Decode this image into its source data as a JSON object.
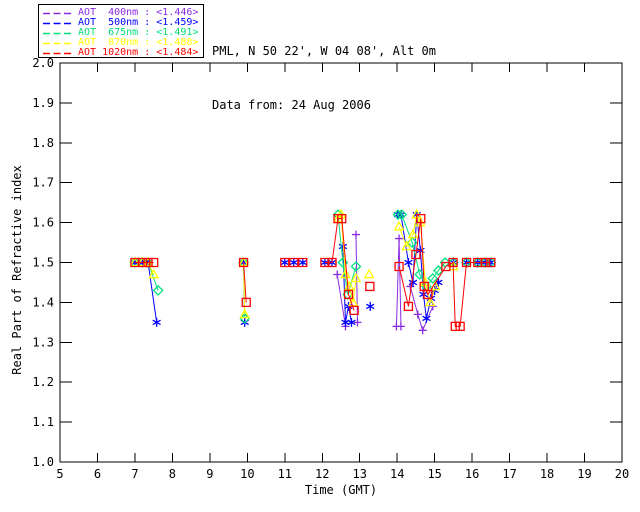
{
  "header": {
    "site": "PML, N 50 22', W 04 08', Alt 0m",
    "date": "Data from: 24 Aug 2006"
  },
  "legend": {
    "items": [
      {
        "label": "AOT  400nm : <1.446>",
        "color": "#8a2be2"
      },
      {
        "label": "AOT  500nm : <1.459>",
        "color": "#0000ff"
      },
      {
        "label": "AOT  675nm : <1.491>",
        "color": "#00e07d"
      },
      {
        "label": "AOT  870nm : <1.488>",
        "color": "#ffff00"
      },
      {
        "label": "AOT 1020nm : <1.484>",
        "color": "#ff0000"
      }
    ]
  },
  "chart_data": {
    "type": "line",
    "title": "",
    "xlabel": "Time (GMT)",
    "ylabel": "Real Part of Refractive index",
    "xlim": [
      5,
      20
    ],
    "ylim": [
      1.0,
      2.0
    ],
    "xticks": [
      5,
      6,
      7,
      8,
      9,
      10,
      11,
      12,
      13,
      14,
      15,
      16,
      17,
      18,
      19,
      20
    ],
    "yticks": [
      1.0,
      1.1,
      1.2,
      1.3,
      1.4,
      1.5,
      1.6,
      1.7,
      1.8,
      1.9,
      2.0
    ],
    "grid": false,
    "legend_position": "top-left",
    "frame_ticks_inward": true,
    "series": [
      {
        "name": "AOT 400nm",
        "wavelength_nm": 400,
        "legend_value": "<1.446>",
        "color": "#8a2be2",
        "marker": "plus",
        "segments": [
          [
            [
              12.4,
              1.47
            ],
            [
              12.62,
              1.34
            ]
          ],
          [
            [
              12.9,
              1.57
            ],
            [
              12.94,
              1.35
            ]
          ],
          [
            [
              13.98,
              1.34
            ],
            [
              14.05,
              1.56
            ],
            [
              14.1,
              1.34
            ]
          ],
          [
            [
              14.35,
              1.44
            ],
            [
              14.55,
              1.37
            ],
            [
              14.68,
              1.33
            ],
            [
              14.95,
              1.39
            ]
          ]
        ]
      },
      {
        "name": "AOT 500nm",
        "wavelength_nm": 500,
        "legend_value": "<1.459>",
        "color": "#0000ff",
        "marker": "asterisk",
        "segments": [
          [
            [
              7.0,
              1.5
            ],
            [
              7.2,
              1.5
            ],
            [
              7.35,
              1.5
            ],
            [
              7.58,
              1.35
            ]
          ],
          [
            [
              9.9,
              1.5
            ],
            [
              9.93,
              1.35
            ]
          ],
          [
            [
              11.0,
              1.5
            ]
          ],
          [
            [
              11.24,
              1.5
            ]
          ],
          [
            [
              11.48,
              1.5
            ]
          ],
          [
            [
              12.07,
              1.5
            ]
          ],
          [
            [
              12.26,
              1.5
            ]
          ],
          [
            [
              12.55,
              1.54
            ],
            [
              12.62,
              1.35
            ],
            [
              12.7,
              1.39
            ],
            [
              12.78,
              1.35
            ]
          ],
          [
            [
              13.28,
              1.39
            ]
          ],
          [
            [
              14.02,
              1.62
            ],
            [
              14.1,
              1.62
            ],
            [
              14.3,
              1.5
            ],
            [
              14.42,
              1.45
            ],
            [
              14.52,
              1.62
            ],
            [
              14.62,
              1.53
            ],
            [
              14.7,
              1.42
            ],
            [
              14.78,
              1.36
            ],
            [
              14.9,
              1.41
            ],
            [
              15.0,
              1.43
            ],
            [
              15.1,
              1.45
            ]
          ],
          [
            [
              15.5,
              1.5
            ]
          ],
          [
            [
              15.85,
              1.5
            ]
          ],
          [
            [
              16.15,
              1.5
            ]
          ],
          [
            [
              16.35,
              1.5
            ]
          ],
          [
            [
              16.5,
              1.5
            ]
          ]
        ]
      },
      {
        "name": "AOT 675nm",
        "wavelength_nm": 675,
        "legend_value": "<1.491>",
        "color": "#00e07d",
        "marker": "diamond",
        "segments": [
          [
            [
              7.0,
              1.5
            ],
            [
              7.2,
              1.5
            ],
            [
              7.35,
              1.5
            ],
            [
              7.62,
              1.43
            ]
          ],
          [
            [
              9.9,
              1.5
            ],
            [
              9.93,
              1.36
            ]
          ],
          [
            [
              12.42,
              1.62
            ],
            [
              12.55,
              1.5
            ],
            [
              12.68,
              1.42
            ],
            [
              12.9,
              1.49
            ]
          ],
          [
            [
              14.02,
              1.62
            ],
            [
              14.12,
              1.62
            ],
            [
              14.4,
              1.55
            ],
            [
              14.6,
              1.47
            ],
            [
              14.78,
              1.44
            ],
            [
              14.95,
              1.46
            ],
            [
              15.1,
              1.48
            ],
            [
              15.28,
              1.5
            ]
          ],
          [
            [
              15.5,
              1.5
            ]
          ],
          [
            [
              15.85,
              1.5
            ]
          ],
          [
            [
              16.15,
              1.5
            ]
          ],
          [
            [
              16.35,
              1.5
            ]
          ],
          [
            [
              16.5,
              1.5
            ]
          ]
        ]
      },
      {
        "name": "AOT 870nm",
        "wavelength_nm": 870,
        "legend_value": "<1.488>",
        "color": "#ffff00",
        "marker": "triangle",
        "segments": [
          [
            [
              7.0,
              1.5
            ],
            [
              7.2,
              1.5
            ],
            [
              7.35,
              1.5
            ],
            [
              7.5,
              1.47
            ]
          ],
          [
            [
              9.9,
              1.5
            ],
            [
              9.93,
              1.37
            ]
          ],
          [
            [
              12.42,
              1.61
            ],
            [
              12.5,
              1.62
            ],
            [
              12.62,
              1.47
            ],
            [
              12.72,
              1.44
            ],
            [
              12.82,
              1.4
            ],
            [
              12.9,
              1.46
            ]
          ],
          [
            [
              13.25,
              1.47
            ]
          ],
          [
            [
              14.05,
              1.59
            ],
            [
              14.25,
              1.54
            ],
            [
              14.42,
              1.57
            ],
            [
              14.52,
              1.62
            ],
            [
              14.62,
              1.6
            ],
            [
              14.75,
              1.45
            ],
            [
              14.88,
              1.4
            ],
            [
              15.02,
              1.44
            ]
          ],
          [
            [
              15.5,
              1.49
            ]
          ]
        ]
      },
      {
        "name": "AOT 1020nm",
        "wavelength_nm": 1020,
        "legend_value": "<1.484>",
        "color": "#ff0000",
        "marker": "square",
        "segments": [
          [
            [
              7.0,
              1.5
            ],
            [
              7.2,
              1.5
            ],
            [
              7.35,
              1.5
            ],
            [
              7.5,
              1.5
            ]
          ],
          [
            [
              9.9,
              1.5
            ],
            [
              9.97,
              1.4
            ]
          ],
          [
            [
              11.0,
              1.5
            ]
          ],
          [
            [
              11.24,
              1.5
            ]
          ],
          [
            [
              11.48,
              1.5
            ]
          ],
          [
            [
              12.07,
              1.5
            ],
            [
              12.26,
              1.5
            ],
            [
              12.42,
              1.61
            ],
            [
              12.52,
              1.61
            ],
            [
              12.7,
              1.42
            ],
            [
              12.85,
              1.38
            ]
          ],
          [
            [
              13.27,
              1.44
            ]
          ],
          [
            [
              14.05,
              1.49
            ],
            [
              14.3,
              1.39
            ],
            [
              14.5,
              1.52
            ],
            [
              14.63,
              1.61
            ],
            [
              14.72,
              1.44
            ],
            [
              14.82,
              1.42
            ],
            [
              15.3,
              1.49
            ],
            [
              15.49,
              1.5
            ],
            [
              15.55,
              1.34
            ],
            [
              15.68,
              1.34
            ],
            [
              15.85,
              1.5
            ],
            [
              16.15,
              1.5
            ],
            [
              16.35,
              1.5
            ],
            [
              16.5,
              1.5
            ]
          ]
        ]
      }
    ]
  }
}
